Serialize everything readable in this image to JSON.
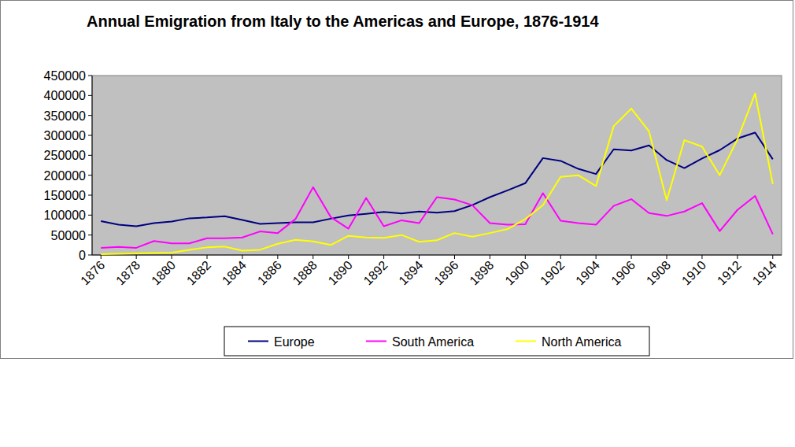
{
  "chart_data": {
    "type": "line",
    "title": "Annual Emigration from Italy to the Americas and Europe, 1876-1914",
    "x": [
      1876,
      1877,
      1878,
      1879,
      1880,
      1881,
      1882,
      1883,
      1884,
      1885,
      1886,
      1887,
      1888,
      1889,
      1890,
      1891,
      1892,
      1893,
      1894,
      1895,
      1896,
      1897,
      1898,
      1899,
      1900,
      1901,
      1902,
      1903,
      1904,
      1905,
      1906,
      1907,
      1908,
      1909,
      1910,
      1911,
      1912,
      1913,
      1914
    ],
    "xlim": [
      1875.5,
      1914.5
    ],
    "xticks": [
      1876,
      1878,
      1880,
      1882,
      1884,
      1886,
      1888,
      1890,
      1892,
      1894,
      1896,
      1898,
      1900,
      1902,
      1904,
      1906,
      1908,
      1910,
      1912,
      1914
    ],
    "ylim": [
      0,
      450000
    ],
    "yticks": [
      0,
      50000,
      100000,
      150000,
      200000,
      250000,
      300000,
      350000,
      400000,
      450000
    ],
    "grid": false,
    "legend": "bottom",
    "series": [
      {
        "name": "Europe",
        "color": "#000080",
        "values": [
          85000,
          76000,
          72000,
          80000,
          84000,
          92000,
          94000,
          97000,
          88000,
          78000,
          80000,
          82000,
          82000,
          91000,
          99000,
          103000,
          108000,
          104000,
          109000,
          106000,
          110000,
          125000,
          145000,
          162000,
          180000,
          243000,
          236000,
          216000,
          203000,
          265000,
          262000,
          275000,
          238000,
          218000,
          242000,
          263000,
          292000,
          307000,
          240000
        ]
      },
      {
        "name": "South America",
        "color": "#ff00ff",
        "values": [
          18000,
          20000,
          18000,
          35000,
          29000,
          29000,
          42000,
          42000,
          44000,
          59000,
          55000,
          90000,
          170000,
          95000,
          66000,
          143000,
          72000,
          87000,
          80000,
          145000,
          139000,
          125000,
          80000,
          76000,
          77000,
          155000,
          86000,
          80000,
          76000,
          123000,
          140000,
          105000,
          98000,
          109000,
          130000,
          60000,
          113000,
          148000,
          52000
        ]
      },
      {
        "name": "North America",
        "color": "#ffff00",
        "values": [
          2000,
          3000,
          4000,
          5000,
          6000,
          13000,
          19000,
          21000,
          11000,
          13000,
          28000,
          38000,
          34000,
          25000,
          48000,
          44000,
          43000,
          50000,
          33000,
          37000,
          55000,
          46000,
          55000,
          65000,
          90000,
          125000,
          196000,
          200000,
          173000,
          323000,
          367000,
          310000,
          137000,
          288000,
          272000,
          200000,
          290000,
          405000,
          178000
        ]
      }
    ]
  }
}
